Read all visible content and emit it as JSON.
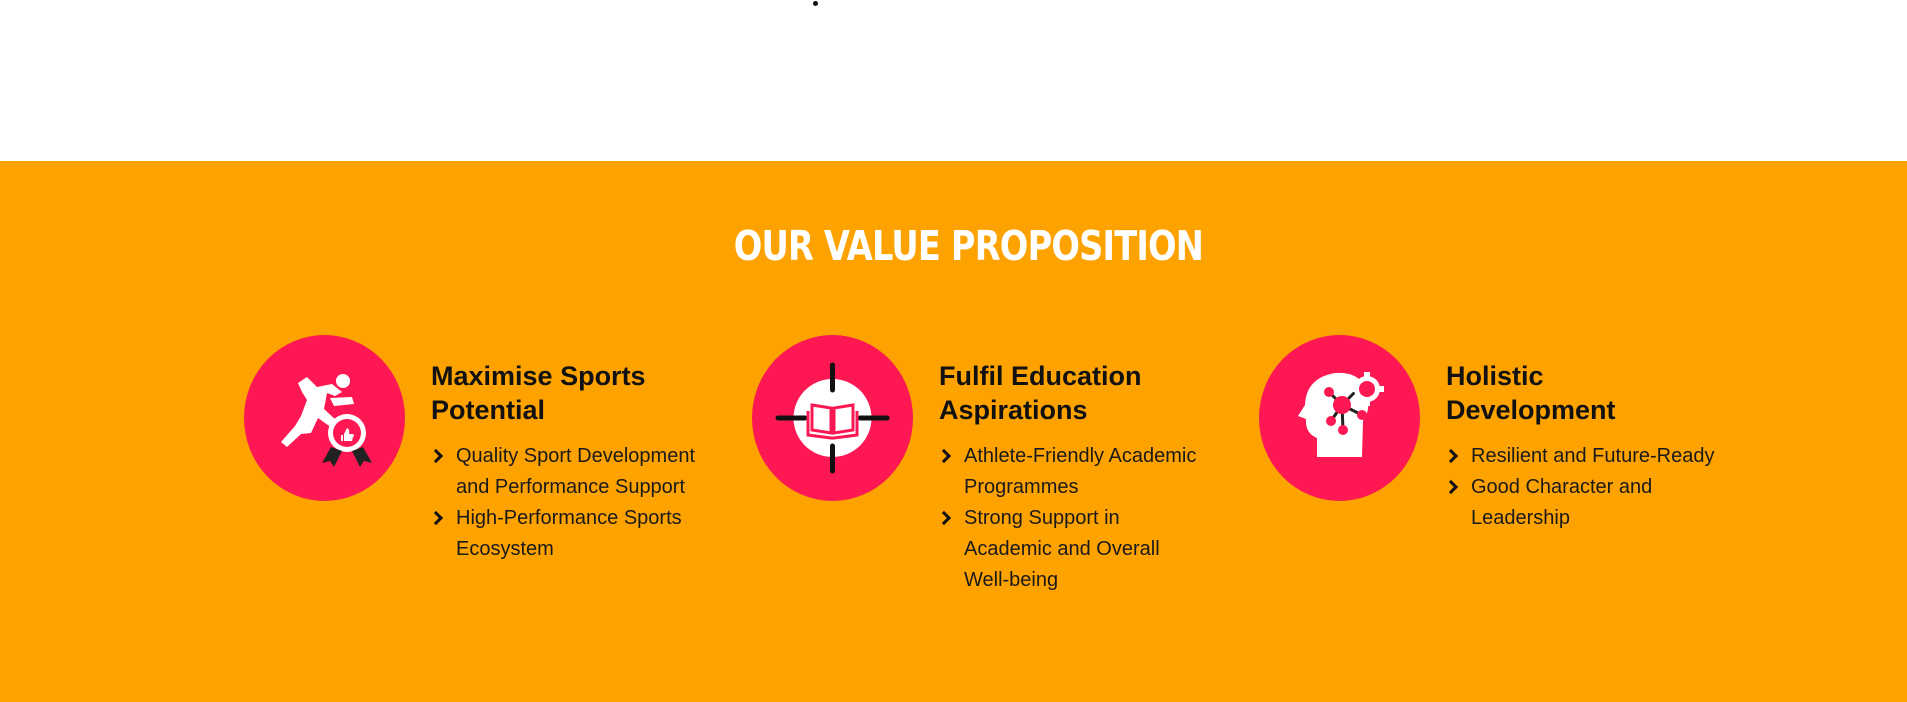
{
  "section": {
    "title": "OUR VALUE PROPOSITION",
    "colors": {
      "background": "#fea200",
      "accent": "#fd1854",
      "title": "#ffffff"
    }
  },
  "cards": [
    {
      "icon": "sprinter-award-icon",
      "title_line1": "Maximise Sports",
      "title_line2": "Potential",
      "points": [
        "Quality Sport Development and Performance Support",
        "High-Performance Sports Ecosystem"
      ]
    },
    {
      "icon": "target-book-icon",
      "title_line1": "Fulfil Education",
      "title_line2": "Aspirations",
      "points": [
        "Athlete-Friendly Academic Programmes",
        "Strong Support in Academic and Overall Well-being"
      ]
    },
    {
      "icon": "head-network-icon",
      "title_line1": "Holistic",
      "title_line2": "Development",
      "points": [
        "Resilient and Future-Ready",
        "Good Character and Leadership"
      ]
    }
  ]
}
